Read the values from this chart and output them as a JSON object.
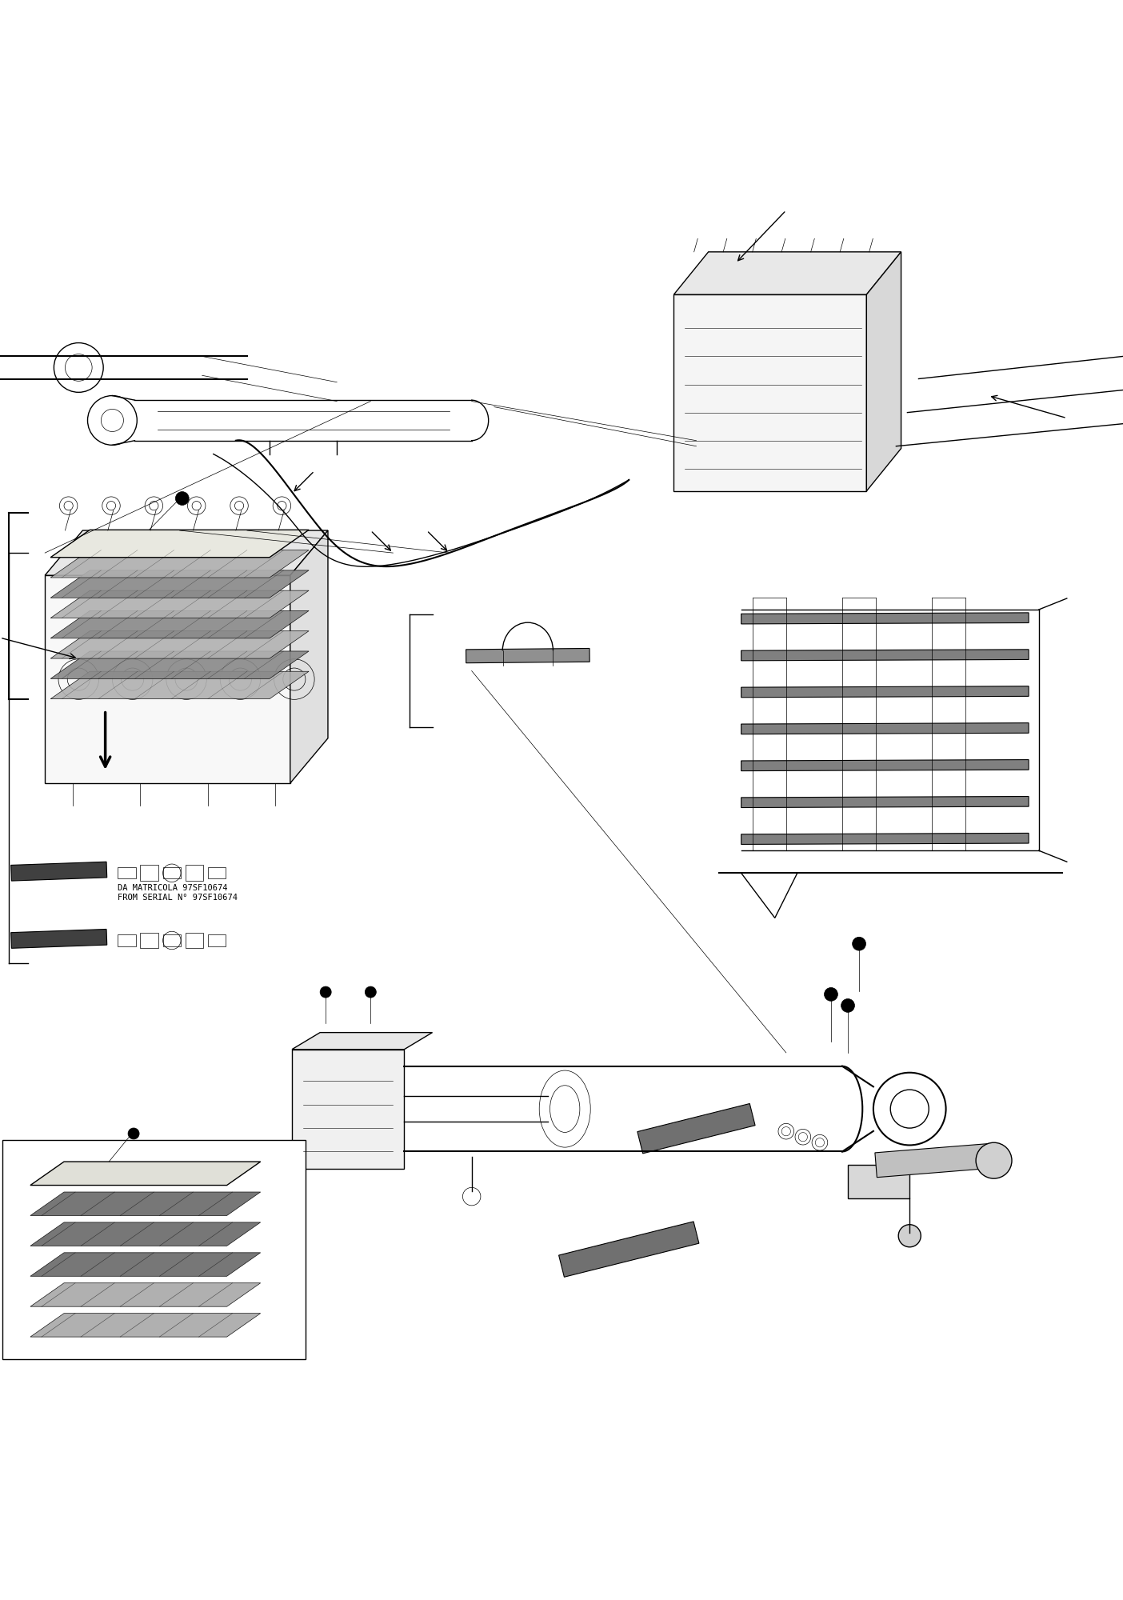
{
  "title": "",
  "background_color": "#ffffff",
  "line_color": "#000000",
  "gray_fill": "#808080",
  "light_gray": "#c0c0c0",
  "dark_gray": "#404040",
  "fig_width": 14.04,
  "fig_height": 20.0,
  "dpi": 100,
  "text_da_matricola": "DA MATRICOLA 97SF10674\nFROM SERIAL N° 97SF10674",
  "text_fontsize": 7.5
}
